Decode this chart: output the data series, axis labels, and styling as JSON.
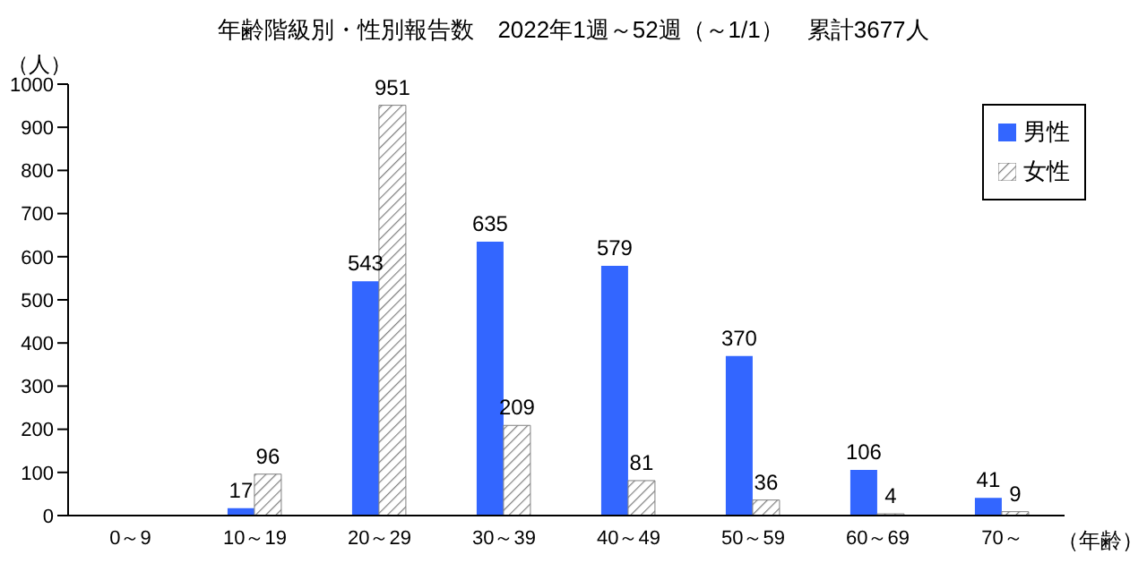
{
  "chart_data": {
    "type": "bar",
    "title": "年齢階級別・性別報告数　2022年1週～52週（～1/1）　累計3677人",
    "ylabel": "（人）",
    "xlabel": "（年齢）",
    "categories": [
      "0～9",
      "10～19",
      "20～29",
      "30～39",
      "40～49",
      "50～59",
      "60～69",
      "70～"
    ],
    "series": [
      {
        "name": "男性",
        "color": "#3366ff",
        "values": [
          0,
          17,
          543,
          635,
          579,
          370,
          106,
          41
        ],
        "value_labels": [
          null,
          "17",
          "543",
          "635",
          "579",
          "370",
          "106",
          "41"
        ]
      },
      {
        "name": "女性",
        "color": "#808080",
        "values": [
          0,
          96,
          951,
          209,
          81,
          36,
          4,
          9
        ],
        "value_labels": [
          null,
          "96",
          "951",
          "209",
          "81",
          "36",
          "4",
          "9"
        ]
      }
    ],
    "ylim": [
      0,
      1000
    ],
    "yticks": [
      0,
      100,
      200,
      300,
      400,
      500,
      600,
      700,
      800,
      900,
      1000
    ],
    "legend": "top right"
  }
}
